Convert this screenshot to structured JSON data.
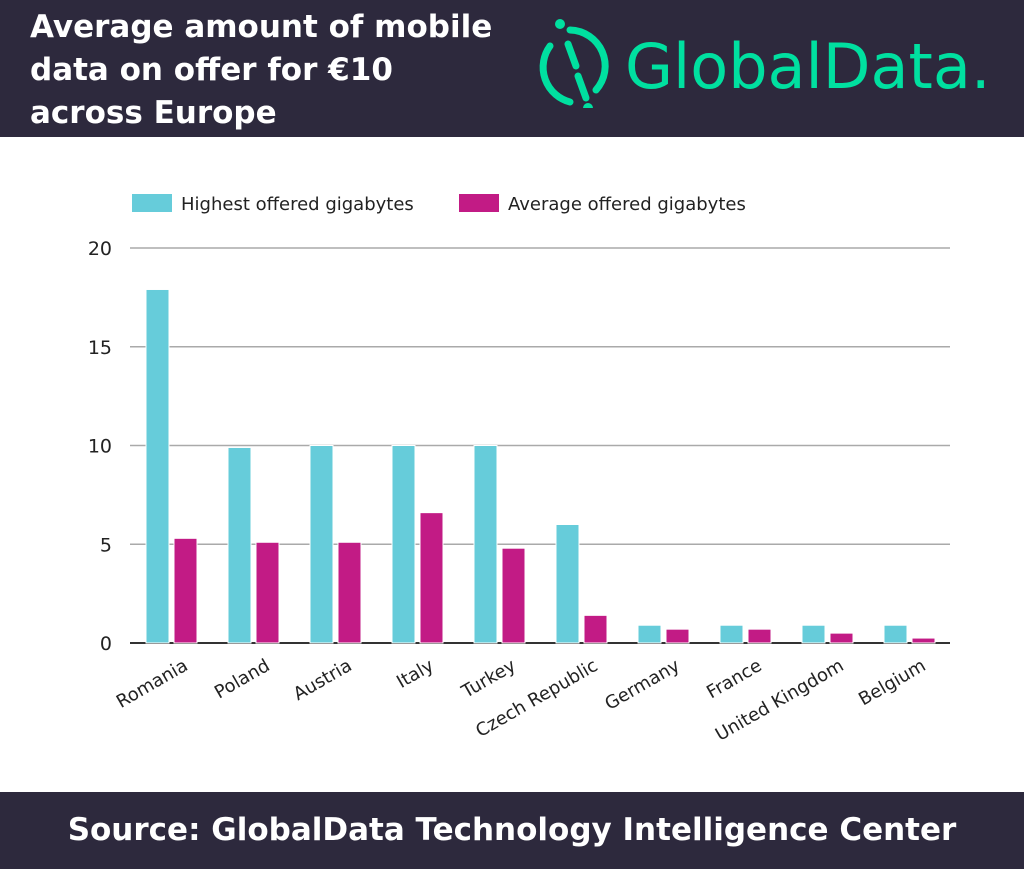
{
  "header": {
    "title": "Average amount of mobile data on offer for €10 across Europe",
    "logo_text": "GlobalData.",
    "brand_color": "#00e0a0"
  },
  "footer": {
    "source": "Source: GlobalData Technology Intelligence Center"
  },
  "chart_data": {
    "type": "bar",
    "title": "Average amount of mobile data on offer for €10 across Europe",
    "categories": [
      "Romania",
      "Poland",
      "Austria",
      "Italy",
      "Turkey",
      "Czech Republic",
      "Germany",
      "France",
      "United Kingdom",
      "Belgium"
    ],
    "series": [
      {
        "name": "Highest offered gigabytes",
        "color": "#66ccda",
        "values": [
          17.9,
          9.9,
          10,
          10,
          10,
          6,
          0.9,
          0.9,
          0.9,
          0.9
        ]
      },
      {
        "name": "Average offered gigabytes",
        "color": "#c21b85",
        "values": [
          5.3,
          5.1,
          5.1,
          6.6,
          4.8,
          1.4,
          0.7,
          0.7,
          0.5,
          0.25
        ]
      }
    ],
    "ylim": [
      0,
      20
    ],
    "yticks": [
      0,
      5,
      10,
      15,
      20
    ],
    "grid": true,
    "legend": "top-left",
    "xlabel": "",
    "ylabel": ""
  }
}
